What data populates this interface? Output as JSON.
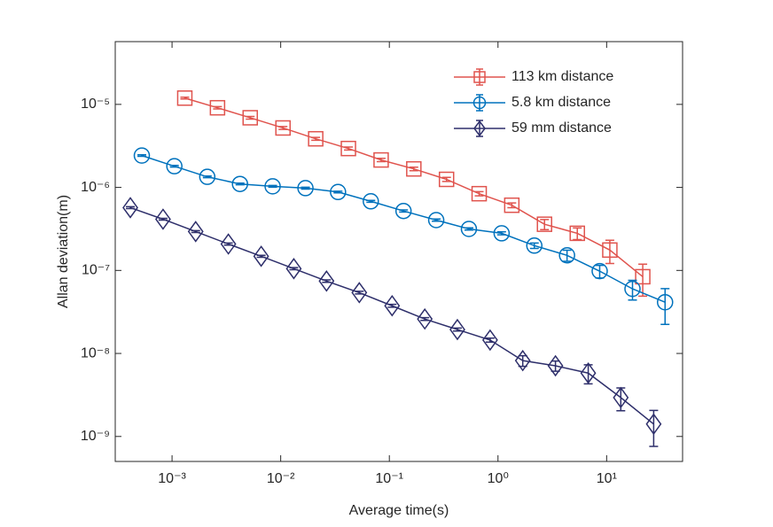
{
  "chart_data": {
    "type": "line",
    "xlabel": "Average time(s)",
    "ylabel": "Allan deviation(m)",
    "xscale": "log",
    "yscale": "log",
    "xlim": [
      0.0003,
      50
    ],
    "ylim": [
      5e-10,
      5.7e-05
    ],
    "xticks": [
      {
        "value": 0.001,
        "label": "10⁻³"
      },
      {
        "value": 0.01,
        "label": "10⁻²"
      },
      {
        "value": 0.1,
        "label": "10⁻¹"
      },
      {
        "value": 1,
        "label": "10⁰"
      },
      {
        "value": 10,
        "label": "10¹"
      }
    ],
    "yticks": [
      {
        "value": 1e-09,
        "label": "10⁻⁹"
      },
      {
        "value": 1e-08,
        "label": "10⁻⁸"
      },
      {
        "value": 1e-07,
        "label": "10⁻⁷"
      },
      {
        "value": 1e-06,
        "label": "10⁻⁶"
      },
      {
        "value": 1e-05,
        "label": "10⁻⁵"
      }
    ],
    "legend": "upper right",
    "series": [
      {
        "name": "113 km distance",
        "color": "#e0544e",
        "marker": "square",
        "x": [
          0.00131,
          0.00262,
          0.00524,
          0.0105,
          0.021,
          0.042,
          0.084,
          0.168,
          0.336,
          0.671,
          1.34,
          2.68,
          5.37,
          10.7,
          21.5
        ],
        "values": [
          1.19e-05,
          9.1e-06,
          6.9e-06,
          5.2e-06,
          3.85e-06,
          2.94e-06,
          2.14e-06,
          1.67e-06,
          1.25e-06,
          8.4e-07,
          6.1e-07,
          3.6e-07,
          2.8e-07,
          1.76e-07,
          8.4e-08
        ],
        "errors": [
          3e-07,
          3e-07,
          2.5e-07,
          2e-07,
          1.5e-07,
          1.2e-07,
          1e-07,
          8e-08,
          7e-08,
          5e-08,
          4e-08,
          5e-08,
          4.5e-08,
          5.5e-08,
          3.5e-08
        ]
      },
      {
        "name": "5.8 km distance",
        "color": "#0072bd",
        "marker": "circle",
        "x": [
          0.000527,
          0.00105,
          0.00211,
          0.00422,
          0.00843,
          0.0169,
          0.0337,
          0.0675,
          0.135,
          0.27,
          0.54,
          1.08,
          2.16,
          4.32,
          8.63,
          17.3,
          34.5
        ],
        "values": [
          2.42e-06,
          1.8e-06,
          1.34e-06,
          1.1e-06,
          1.03e-06,
          9.8e-07,
          8.8e-07,
          6.8e-07,
          5.2e-07,
          4.04e-07,
          3.16e-07,
          2.8e-07,
          1.99e-07,
          1.52e-07,
          9.8e-08,
          6e-08,
          4.14e-08
        ],
        "errors": [
          5e-08,
          4e-08,
          3e-08,
          2.5e-08,
          2.5e-08,
          2.5e-08,
          2e-08,
          1.8e-08,
          1.5e-08,
          1.2e-08,
          1e-08,
          1.2e-08,
          1.5e-08,
          2.3e-08,
          1.7e-08,
          1.6e-08,
          1.9e-08
        ]
      },
      {
        "name": "59 mm distance",
        "color": "#2e2f6b",
        "marker": "diamond",
        "x": [
          0.000413,
          0.000826,
          0.00165,
          0.0033,
          0.00661,
          0.0132,
          0.0264,
          0.0529,
          0.106,
          0.212,
          0.423,
          0.846,
          1.69,
          3.38,
          6.77,
          13.5,
          27.1
        ],
        "values": [
          5.7e-07,
          4.14e-07,
          2.94e-07,
          2.08e-07,
          1.48e-07,
          1.05e-07,
          7.45e-08,
          5.4e-08,
          3.75e-08,
          2.6e-08,
          1.94e-08,
          1.45e-08,
          8.2e-09,
          7.1e-09,
          5.8e-09,
          2.94e-09,
          1.41e-09
        ],
        "errors": [
          1.5e-08,
          1e-08,
          8e-09,
          6e-09,
          4e-09,
          3e-09,
          2.5e-09,
          2e-09,
          1.5e-09,
          1e-09,
          8e-10,
          8e-10,
          1.2e-09,
          1e-09,
          1.5e-09,
          9e-10,
          6.5e-10
        ]
      }
    ]
  }
}
